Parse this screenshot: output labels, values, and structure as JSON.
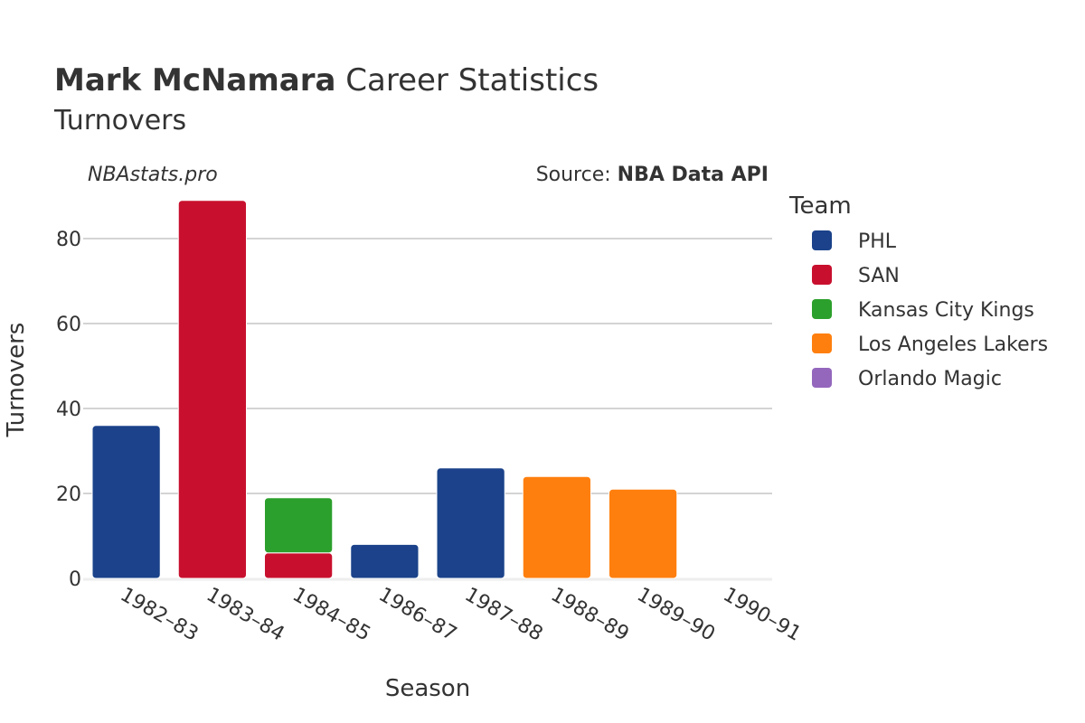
{
  "header": {
    "player": "Mark McNamara",
    "title_rest": " Career Statistics",
    "subtitle": "Turnovers",
    "site": "NBAstats.pro",
    "source_prefix": "Source: ",
    "source_name": "NBA Data API"
  },
  "chart_data": {
    "type": "bar",
    "barmode": "stack",
    "xlabel": "Season",
    "ylabel": "Turnovers",
    "ylim": [
      0,
      90
    ],
    "yticks": [
      0,
      20,
      40,
      60,
      80
    ],
    "grid": true,
    "categories": [
      "1982–83",
      "1983–84",
      "1984–85",
      "1986–87",
      "1987–88",
      "1988–89",
      "1989–90",
      "1990–91"
    ],
    "series": [
      {
        "name": "PHL",
        "color": "#1b428a",
        "values": [
          36,
          0,
          0,
          8,
          26,
          0,
          0,
          0
        ]
      },
      {
        "name": "SAN",
        "color": "#c8102e",
        "values": [
          0,
          89,
          6,
          0,
          0,
          0,
          0,
          0
        ]
      },
      {
        "name": "Kansas City Kings",
        "color": "#2ca02c",
        "values": [
          0,
          0,
          13,
          0,
          0,
          0,
          0,
          0
        ]
      },
      {
        "name": "Los Angeles Lakers",
        "color": "#ff7f0e",
        "values": [
          0,
          0,
          0,
          0,
          0,
          24,
          21,
          0
        ]
      },
      {
        "name": "Orlando Magic",
        "color": "#9467bd",
        "values": [
          0,
          0,
          0,
          0,
          0,
          0,
          0,
          0
        ]
      }
    ],
    "legend": {
      "title": "Team",
      "placement": "right"
    }
  }
}
